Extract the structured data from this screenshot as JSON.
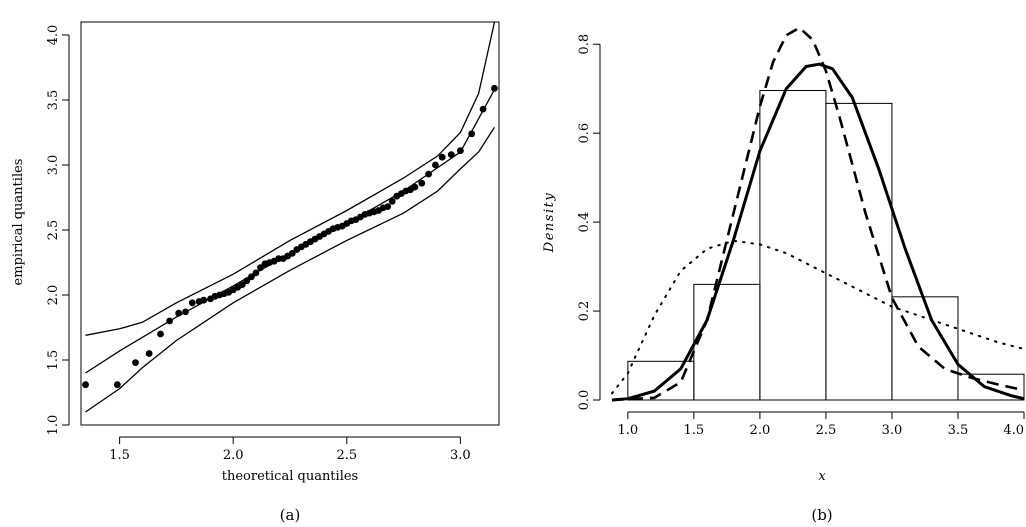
{
  "chart_data": [
    {
      "type": "scatter",
      "caption": "(a)",
      "xlabel": "theoretical quantiles",
      "ylabel": "empirical quantiles",
      "xlim": [
        1.33,
        3.17
      ],
      "ylim": [
        1.0,
        4.1
      ],
      "xticks": [
        "1.5",
        "2.0",
        "2.5",
        "3.0"
      ],
      "yticks": [
        "1.0",
        "1.5",
        "2.0",
        "2.5",
        "3.0",
        "3.5",
        "4.0"
      ],
      "grid": false,
      "points": {
        "x": [
          1.35,
          1.49,
          1.57,
          1.63,
          1.68,
          1.72,
          1.76,
          1.79,
          1.82,
          1.85,
          1.87,
          1.9,
          1.92,
          1.94,
          1.96,
          1.98,
          2.0,
          2.02,
          2.04,
          2.06,
          2.08,
          2.1,
          2.12,
          2.14,
          2.16,
          2.18,
          2.2,
          2.22,
          2.24,
          2.26,
          2.28,
          2.3,
          2.32,
          2.34,
          2.36,
          2.38,
          2.4,
          2.42,
          2.44,
          2.46,
          2.48,
          2.5,
          2.52,
          2.54,
          2.56,
          2.58,
          2.6,
          2.62,
          2.64,
          2.66,
          2.68,
          2.7,
          2.72,
          2.74,
          2.76,
          2.78,
          2.8,
          2.83,
          2.86,
          2.89,
          2.92,
          2.96,
          3.0,
          3.05,
          3.1,
          3.15
        ],
        "y": [
          1.31,
          1.31,
          1.48,
          1.55,
          1.7,
          1.8,
          1.86,
          1.87,
          1.94,
          1.95,
          1.96,
          1.97,
          1.99,
          2.0,
          2.01,
          2.02,
          2.04,
          2.06,
          2.08,
          2.11,
          2.14,
          2.17,
          2.21,
          2.24,
          2.25,
          2.26,
          2.28,
          2.28,
          2.3,
          2.32,
          2.35,
          2.37,
          2.39,
          2.41,
          2.43,
          2.45,
          2.47,
          2.49,
          2.51,
          2.52,
          2.53,
          2.55,
          2.57,
          2.58,
          2.6,
          2.62,
          2.63,
          2.64,
          2.65,
          2.67,
          2.68,
          2.72,
          2.76,
          2.78,
          2.8,
          2.81,
          2.83,
          2.86,
          2.93,
          3.0,
          3.06,
          3.08,
          3.11,
          3.24,
          3.43,
          3.59
        ]
      },
      "lines": [
        {
          "role": "reference",
          "x": [
            1.35,
            1.5,
            1.75,
            2.0,
            2.25,
            2.5,
            2.75,
            3.0,
            3.15
          ],
          "y": [
            1.4,
            1.57,
            1.83,
            2.07,
            2.32,
            2.55,
            2.8,
            3.1,
            3.58
          ]
        },
        {
          "role": "upper-envelope",
          "x": [
            1.35,
            1.5,
            1.6,
            1.75,
            2.0,
            2.25,
            2.5,
            2.75,
            2.9,
            3.0,
            3.08,
            3.15
          ],
          "y": [
            1.69,
            1.74,
            1.79,
            1.94,
            2.16,
            2.42,
            2.65,
            2.9,
            3.07,
            3.25,
            3.55,
            4.1
          ]
        },
        {
          "role": "lower-envelope",
          "x": [
            1.35,
            1.5,
            1.6,
            1.75,
            2.0,
            2.25,
            2.5,
            2.75,
            2.9,
            3.0,
            3.08,
            3.15
          ],
          "y": [
            1.1,
            1.28,
            1.44,
            1.65,
            1.94,
            2.19,
            2.42,
            2.63,
            2.8,
            2.97,
            3.1,
            3.29
          ]
        }
      ]
    },
    {
      "type": "histogram",
      "caption": "(b)",
      "xlabel": "x",
      "ylabel": "Density",
      "xlim": [
        0.88,
        4.0
      ],
      "ylim": [
        0,
        0.85
      ],
      "xticks": [
        "1.0",
        "1.5",
        "2.0",
        "2.5",
        "3.0",
        "3.5",
        "4.0"
      ],
      "yticks": [
        "0.0",
        "0.2",
        "0.4",
        "0.6",
        "0.8"
      ],
      "grid": false,
      "bins": [
        {
          "from": 1.0,
          "to": 1.5,
          "density": 0.087
        },
        {
          "from": 1.5,
          "to": 2.0,
          "density": 0.26
        },
        {
          "from": 2.0,
          "to": 2.5,
          "density": 0.696
        },
        {
          "from": 2.5,
          "to": 3.0,
          "density": 0.667
        },
        {
          "from": 3.0,
          "to": 3.5,
          "density": 0.232
        },
        {
          "from": 3.5,
          "to": 4.0,
          "density": 0.058
        }
      ],
      "curves": [
        {
          "style": "solid",
          "x": [
            0.88,
            1.0,
            1.2,
            1.4,
            1.6,
            1.8,
            2.0,
            2.2,
            2.35,
            2.45,
            2.55,
            2.7,
            2.9,
            3.1,
            3.3,
            3.5,
            3.7,
            3.9,
            4.0
          ],
          "y": [
            0.0,
            0.003,
            0.02,
            0.07,
            0.18,
            0.36,
            0.56,
            0.7,
            0.75,
            0.755,
            0.745,
            0.68,
            0.52,
            0.34,
            0.18,
            0.08,
            0.03,
            0.01,
            0.003
          ]
        },
        {
          "style": "dashed",
          "x": [
            0.88,
            1.2,
            1.4,
            1.6,
            1.8,
            2.0,
            2.1,
            2.2,
            2.3,
            2.4,
            2.5,
            2.6,
            2.7,
            2.8,
            3.0,
            3.2,
            3.4,
            3.6,
            3.8,
            4.0
          ],
          "y": [
            0.0,
            0.005,
            0.04,
            0.18,
            0.42,
            0.66,
            0.76,
            0.82,
            0.837,
            0.81,
            0.74,
            0.64,
            0.53,
            0.42,
            0.23,
            0.12,
            0.07,
            0.05,
            0.035,
            0.022
          ]
        },
        {
          "style": "dotted",
          "x": [
            0.88,
            1.0,
            1.2,
            1.4,
            1.6,
            1.8,
            2.0,
            2.2,
            2.4,
            2.6,
            2.8,
            3.0,
            3.2,
            3.4,
            3.6,
            3.8,
            4.0
          ],
          "y": [
            0.015,
            0.06,
            0.19,
            0.29,
            0.34,
            0.358,
            0.35,
            0.33,
            0.3,
            0.27,
            0.24,
            0.21,
            0.19,
            0.17,
            0.15,
            0.13,
            0.115
          ]
        }
      ]
    }
  ]
}
